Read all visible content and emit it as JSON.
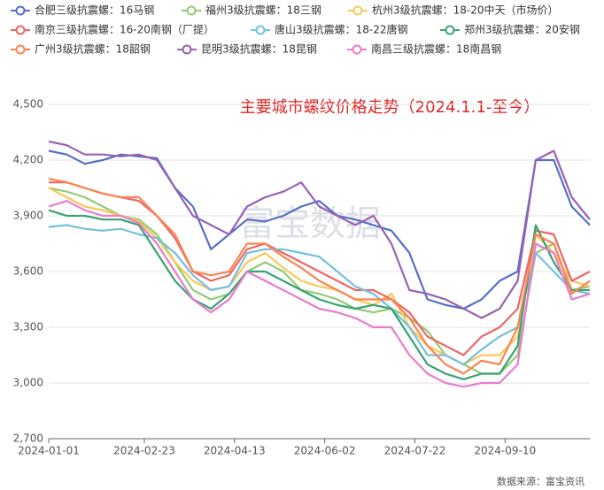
{
  "chart_data": {
    "type": "line",
    "title": "主要城市螺纹价格走势（2024.1.1-至今）",
    "watermark": "富宝数据",
    "source": "数据来源：富宝资讯",
    "x": [
      "2024-01-01",
      "2024-01-11",
      "2024-01-21",
      "2024-01-31",
      "2024-02-10",
      "2024-02-20",
      "2024-03-01",
      "2024-03-11",
      "2024-03-21",
      "2024-03-31",
      "2024-04-10",
      "2024-04-20",
      "2024-04-30",
      "2024-05-10",
      "2024-05-20",
      "2024-05-30",
      "2024-06-09",
      "2024-06-19",
      "2024-06-29",
      "2024-07-09",
      "2024-07-19",
      "2024-07-29",
      "2024-08-08",
      "2024-08-18",
      "2024-08-28",
      "2024-09-07",
      "2024-09-17",
      "2024-09-27",
      "2024-10-07",
      "2024-10-17",
      "2024-10-27"
    ],
    "xlim": [
      "2024-01-01",
      "2024-10-27"
    ],
    "xticks": [
      "2024-01-01",
      "2024-02-23",
      "2024-04-13",
      "2024-06-02",
      "2024-07-22",
      "2024-09-10"
    ],
    "ylim": [
      2700,
      4500
    ],
    "yticks": [
      {
        "value": 2700,
        "label": "2,700"
      },
      {
        "value": 3000,
        "label": "3,000"
      },
      {
        "value": 3300,
        "label": "3,300"
      },
      {
        "value": 3600,
        "label": "3,600"
      },
      {
        "value": 3900,
        "label": "3,900"
      },
      {
        "value": 4200,
        "label": "4,200"
      },
      {
        "value": 4500,
        "label": "4,500"
      }
    ],
    "grid": true,
    "series": [
      {
        "name": "合肥三级抗震螺：16马钢",
        "color": "#5470c6",
        "values": [
          4250,
          4230,
          4180,
          4200,
          4230,
          4220,
          4210,
          4050,
          3950,
          3720,
          3800,
          3880,
          3870,
          3900,
          3950,
          3980,
          3900,
          3880,
          3850,
          3820,
          3700,
          3450,
          3420,
          3400,
          3450,
          3550,
          3600,
          4200,
          4200,
          3950,
          3850
        ]
      },
      {
        "name": "福州3级抗震螺：18三钢",
        "color": "#91cc75",
        "values": [
          4050,
          4030,
          4000,
          3950,
          3900,
          3880,
          3800,
          3650,
          3500,
          3450,
          3480,
          3600,
          3650,
          3600,
          3500,
          3480,
          3450,
          3400,
          3380,
          3400,
          3350,
          3280,
          3150,
          3100,
          3050,
          3050,
          3150,
          3700,
          3750,
          3500,
          3520
        ]
      },
      {
        "name": "杭州3级抗震螺：18-20中天（市场价）",
        "color": "#fac858",
        "values": [
          4050,
          4000,
          3950,
          3930,
          3900,
          3870,
          3780,
          3650,
          3550,
          3500,
          3520,
          3650,
          3700,
          3620,
          3550,
          3520,
          3500,
          3450,
          3420,
          3480,
          3300,
          3200,
          3150,
          3100,
          3150,
          3150,
          3250,
          3800,
          3700,
          3550,
          3520
        ]
      },
      {
        "name": "南京三级抗震螺：16-20南钢（厂提）",
        "color": "#ee6666",
        "values": [
          4080,
          4080,
          4050,
          4020,
          4000,
          3980,
          3900,
          3780,
          3600,
          3550,
          3580,
          3720,
          3750,
          3700,
          3650,
          3600,
          3550,
          3500,
          3500,
          3450,
          3380,
          3250,
          3200,
          3150,
          3250,
          3300,
          3400,
          3820,
          3800,
          3550,
          3600
        ]
      },
      {
        "name": "唐山3级抗震螺：18-22唐钢",
        "color": "#73c0de",
        "values": [
          3840,
          3850,
          3830,
          3820,
          3830,
          3800,
          3780,
          3700,
          3580,
          3500,
          3520,
          3700,
          3720,
          3720,
          3700,
          3680,
          3600,
          3520,
          3480,
          3400,
          3300,
          3150,
          3150,
          3100,
          3180,
          3250,
          3300,
          3700,
          3600,
          3500,
          3480
        ]
      },
      {
        "name": "郑州3级抗震螺：20安钢",
        "color": "#3ba272",
        "values": [
          3930,
          3900,
          3900,
          3880,
          3880,
          3850,
          3700,
          3550,
          3450,
          3400,
          3480,
          3600,
          3600,
          3550,
          3500,
          3450,
          3420,
          3400,
          3420,
          3400,
          3250,
          3100,
          3050,
          3020,
          3050,
          3050,
          3200,
          3850,
          3650,
          3500,
          3500
        ]
      },
      {
        "name": "广州3级抗震螺：18韶钢",
        "color": "#fc8452",
        "values": [
          4100,
          4080,
          4050,
          4020,
          4000,
          4000,
          3900,
          3800,
          3600,
          3580,
          3600,
          3750,
          3750,
          3680,
          3620,
          3550,
          3500,
          3450,
          3450,
          3450,
          3350,
          3200,
          3100,
          3050,
          3120,
          3100,
          3300,
          3800,
          3750,
          3480,
          3550
        ]
      },
      {
        "name": "昆明3级抗震螺：18昆钢",
        "color": "#9a60b4",
        "values": [
          4300,
          4280,
          4230,
          4230,
          4220,
          4230,
          4200,
          4050,
          3900,
          3850,
          3800,
          3950,
          4000,
          4030,
          4080,
          3950,
          3900,
          3850,
          3900,
          3750,
          3500,
          3480,
          3450,
          3400,
          3350,
          3400,
          3550,
          4200,
          4250,
          4000,
          3880
        ]
      },
      {
        "name": "南昌三级抗震螺：18南昌钢",
        "color": "#ea7ccc",
        "values": [
          3950,
          3980,
          3930,
          3900,
          3900,
          3860,
          3750,
          3600,
          3450,
          3380,
          3450,
          3600,
          3550,
          3500,
          3450,
          3400,
          3380,
          3350,
          3300,
          3300,
          3150,
          3050,
          3000,
          2980,
          3000,
          3000,
          3100,
          3750,
          3700,
          3450,
          3480
        ]
      }
    ]
  }
}
